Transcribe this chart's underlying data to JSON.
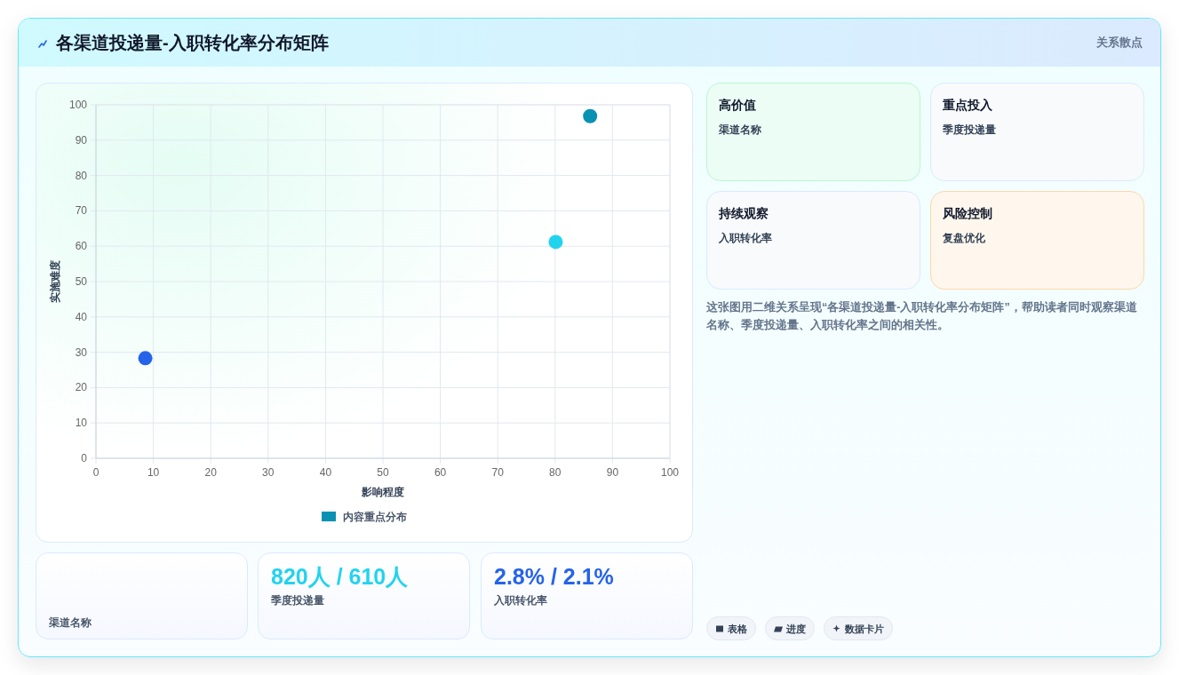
{
  "chart_data": [
    {
      "type": "other",
      "title": "各渠道投递量-入职转化率分布矩阵",
      "subtitle": "关系散点"
    },
    {
      "type": "scatter",
      "xlabel": "影响程度",
      "ylabel": "实施难度",
      "x": [
        8.6,
        80.1,
        86.1
      ],
      "series": [
        {
          "name": "内容重点分布",
          "color": "#0891b2",
          "colors": [
            "#2563eb",
            "#22d3ee",
            "#0891b2"
          ],
          "values": [
            28.3,
            61.2,
            96.8
          ]
        }
      ],
      "xlim": [
        0,
        100
      ],
      "ylim": [
        0,
        100
      ],
      "xticks": [
        0,
        10,
        20,
        30,
        40,
        50,
        60,
        70,
        80,
        90,
        100
      ],
      "yticks": [
        0,
        10,
        20,
        30,
        40,
        50,
        60,
        70,
        80,
        90,
        100
      ],
      "grid": true,
      "legend": "bottom",
      "marker": "circle"
    },
    {
      "type": "other",
      "title": "高价值",
      "annotations": [
        "渠道名称"
      ]
    },
    {
      "type": "other",
      "title": "重点投入",
      "annotations": [
        "季度投递量"
      ]
    },
    {
      "type": "other",
      "title": "持续观察",
      "annotations": [
        "入职转化率"
      ]
    },
    {
      "type": "other",
      "title": "风险控制",
      "annotations": [
        "复盘优化"
      ]
    },
    {
      "type": "other",
      "annotations": [
        "这张图用二维关系呈现“各渠道投递量-入职转化率分布矩阵”，帮助读者同时观察渠道名称、季度投递量、入职转化率之间的相关性。"
      ]
    },
    {
      "type": "other",
      "annotations": [
        "渠道名称"
      ]
    },
    {
      "type": "other",
      "annotations": [
        "820人 / 610人",
        "季度投递量"
      ]
    },
    {
      "type": "other",
      "annotations": [
        "2.8% / 2.1%",
        "入职转化率"
      ]
    },
    {
      "type": "other",
      "annotations": [
        "表格",
        "进度",
        "数据卡片"
      ]
    }
  ]
}
